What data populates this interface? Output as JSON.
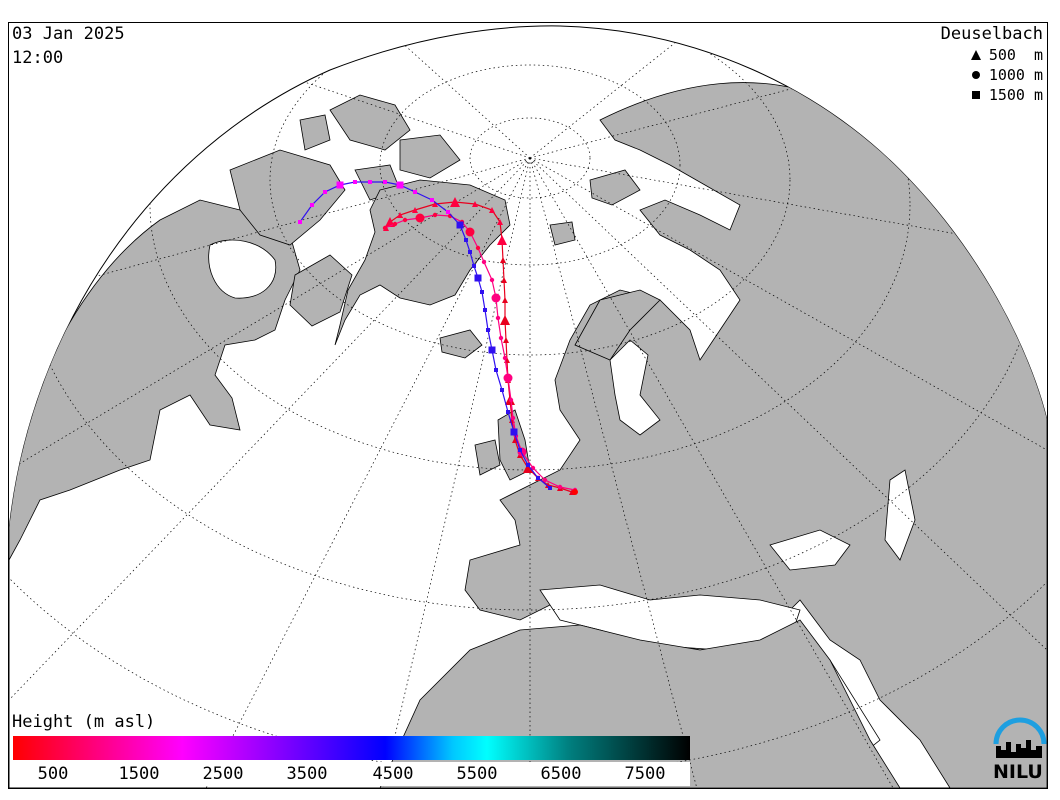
{
  "header": {
    "date": "03 Jan 2025",
    "time": "12:00"
  },
  "legend": {
    "station": "Deuselbach",
    "items": [
      {
        "symbol": "triangle",
        "label": "500  m"
      },
      {
        "symbol": "circle",
        "label": "1000 m"
      },
      {
        "symbol": "square",
        "label": "1500 m"
      }
    ]
  },
  "colorbar": {
    "title": "Height (m asl)",
    "ticks": [
      "500",
      "1500",
      "2500",
      "3500",
      "4500",
      "5500",
      "6500",
      "7500"
    ]
  },
  "logo": {
    "text": "NILU",
    "color": "#1e9fe0"
  },
  "colors": {
    "land": "#b3b3b3",
    "ocean": "#ffffff",
    "track_500": "#e8001e",
    "track_1000": "#ff0080",
    "track_1500": "#3010f0"
  }
}
